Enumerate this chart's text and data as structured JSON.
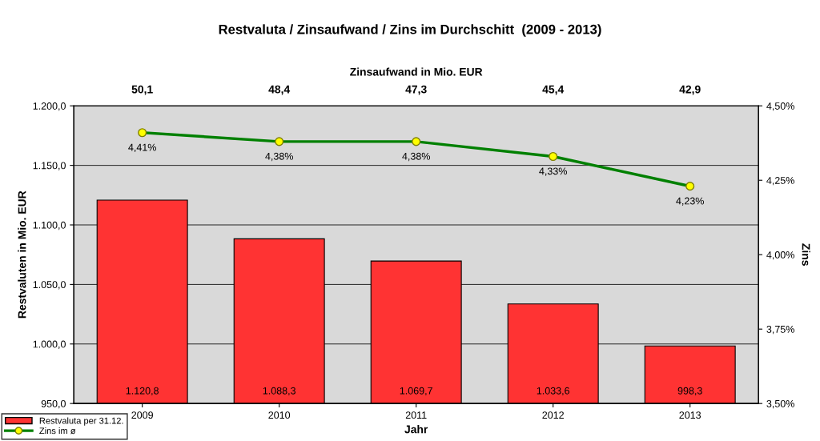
{
  "chart_data": {
    "type": "bar",
    "title": "Restvaluta / Zinsaufwand / Zins im Durchschitt  (2009 - 2013)",
    "xlabel": "Jahr",
    "ylabel": "Restvaluten in Mio. EUR",
    "y2label": "Zins",
    "x2label": "Zinsaufwand in Mio. EUR",
    "categories": [
      "2009",
      "2010",
      "2011",
      "2012",
      "2013"
    ],
    "series": [
      {
        "name": "Restvaluta per 31.12.",
        "color": "#ff3333",
        "values": [
          1120.8,
          1088.3,
          1069.7,
          1033.6,
          998.3
        ],
        "value_labels": [
          "1.120,8",
          "1.088,3",
          "1.069,7",
          "1.033,6",
          "998,3"
        ]
      },
      {
        "name": "Zins im ø",
        "type": "line",
        "axis": "y2",
        "color": "#008000",
        "values": [
          4.41,
          4.38,
          4.38,
          4.33,
          4.23
        ],
        "value_labels": [
          "4,41%",
          "4,38%",
          "4,38%",
          "4,33%",
          "4,23%"
        ]
      }
    ],
    "annotations": [
      "50,1",
      "48,4",
      "47,3",
      "45,4",
      "42,9"
    ],
    "ylim": [
      950,
      1200
    ],
    "yticks": [
      {
        "value": 950,
        "label": "950,0"
      },
      {
        "value": 1000,
        "label": "1.000,0"
      },
      {
        "value": 1050,
        "label": "1.050,0"
      },
      {
        "value": 1100,
        "label": "1.100,0"
      },
      {
        "value": 1150,
        "label": "1.150,0"
      },
      {
        "value": 1200,
        "label": "1.200,0"
      }
    ],
    "y2lim": [
      3.5,
      4.5
    ],
    "y2ticks": [
      {
        "value": 3.5,
        "label": "3,50%"
      },
      {
        "value": 3.75,
        "label": "3,75%"
      },
      {
        "value": 4.0,
        "label": "4,00%"
      },
      {
        "value": 4.25,
        "label": "4,25%"
      },
      {
        "value": 4.5,
        "label": "4,50%"
      }
    ],
    "grid": "y",
    "legend": "bottom left",
    "marker": "circle"
  }
}
